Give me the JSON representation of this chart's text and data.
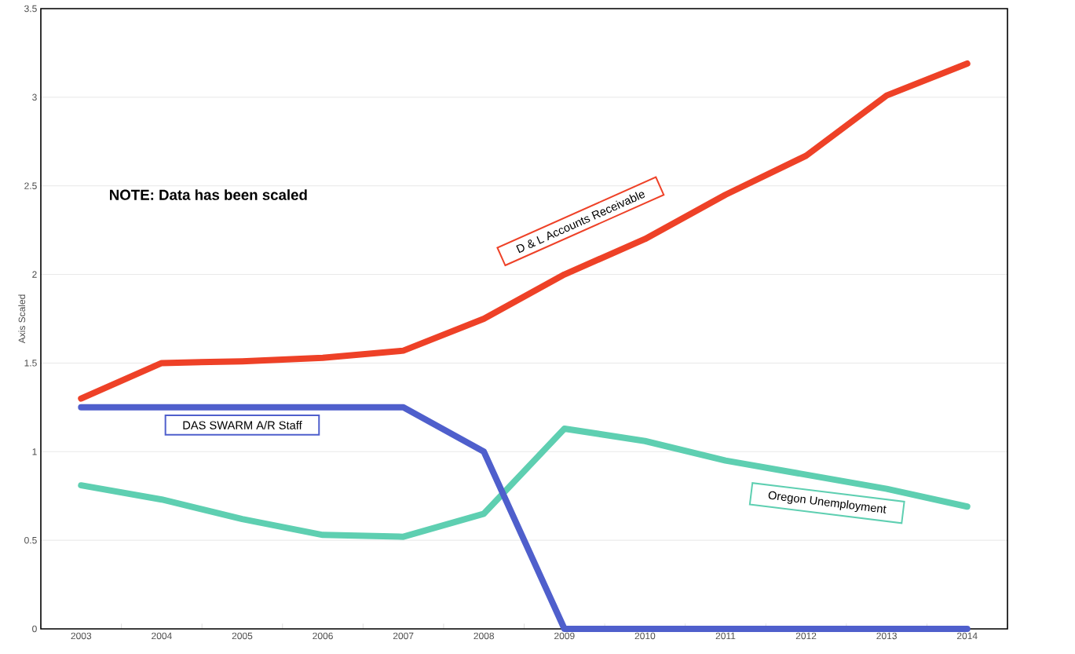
{
  "chart_data": {
    "type": "line",
    "ylabel": "Axis Scaled",
    "categories": [
      "2003",
      "2004",
      "2005",
      "2006",
      "2007",
      "2008",
      "2009",
      "2010",
      "2011",
      "2012",
      "2013",
      "2014"
    ],
    "series": [
      {
        "name": "Oregon Unemployment",
        "color": "#5ecfb1",
        "values": [
          0.81,
          0.73,
          0.62,
          0.53,
          0.52,
          0.65,
          1.13,
          1.06,
          0.95,
          0.87,
          0.79,
          0.69
        ]
      },
      {
        "name": "DAS SWARM A/R Staff",
        "color": "#4f5fcc",
        "values": [
          1.25,
          1.25,
          1.25,
          1.25,
          1.25,
          1.0,
          0,
          0,
          0,
          0,
          0,
          0
        ]
      },
      {
        "name": "D & L Accounts Receivable",
        "color": "#ee4127",
        "values": [
          1.3,
          1.5,
          1.51,
          1.53,
          1.57,
          1.75,
          2.0,
          2.2,
          2.45,
          2.67,
          3.01,
          3.19
        ]
      }
    ],
    "ylim": [
      0,
      3.5
    ],
    "yticks": [
      0,
      0.5,
      1,
      1.5,
      2,
      2.5,
      3,
      3.5
    ],
    "grid": "y",
    "legend": false,
    "marker": "none",
    "line_style": "solid",
    "annotations": [
      "NOTE:  Data has been scaled"
    ]
  }
}
